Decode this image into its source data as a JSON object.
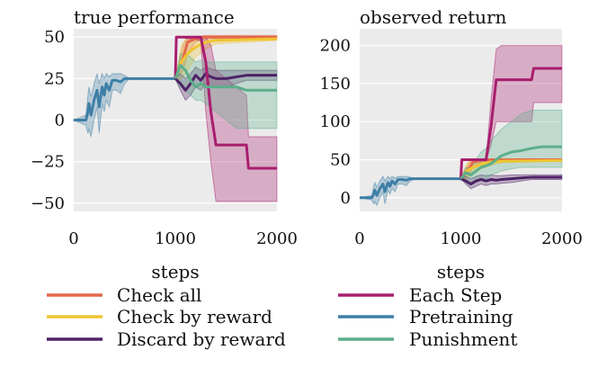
{
  "chart_data": [
    {
      "type": "line",
      "title": "true performance",
      "xlabel": "steps",
      "ylabel": "",
      "xlim": [
        0,
        2000
      ],
      "ylim": [
        -55,
        55
      ],
      "xticks": [
        0,
        1000,
        2000
      ],
      "yticks": [
        -50,
        -25,
        0,
        25,
        50
      ],
      "xtick_labels": [
        "0",
        "1000",
        "2000"
      ],
      "ytick_labels": [
        "−50",
        "−25",
        "0",
        "25",
        "50"
      ],
      "grid": true,
      "series": [
        {
          "name": "Pretraining",
          "color": "#3e7fa6",
          "x": [
            0,
            120,
            140,
            150,
            170,
            200,
            230,
            250,
            280,
            300,
            320,
            350,
            380,
            420,
            460,
            500,
            550,
            1000
          ],
          "y": [
            0,
            0,
            5,
            10,
            3,
            12,
            18,
            8,
            20,
            15,
            22,
            18,
            24,
            24,
            23,
            25,
            25,
            25
          ],
          "band_lower": [
            0,
            -3,
            -8,
            -5,
            -10,
            0,
            8,
            -8,
            10,
            5,
            12,
            8,
            18,
            18,
            16,
            22,
            25,
            25
          ],
          "band_upper": [
            0,
            3,
            15,
            20,
            14,
            22,
            28,
            22,
            28,
            25,
            28,
            26,
            28,
            28,
            28,
            27,
            25,
            25
          ]
        },
        {
          "name": "Check all",
          "color": "#e3694a",
          "x": [
            1000,
            1080,
            1120,
            1200,
            1280,
            2000
          ],
          "y": [
            25,
            38,
            47,
            49,
            50,
            50
          ],
          "band_lower": [
            25,
            30,
            40,
            47,
            49,
            49
          ],
          "band_upper": [
            25,
            46,
            50,
            50,
            51,
            51
          ]
        },
        {
          "name": "Check by reward",
          "color": "#efc531",
          "x": [
            1000,
            1060,
            1120,
            1200,
            1300,
            1400,
            2000
          ],
          "y": [
            25,
            35,
            40,
            44,
            47,
            48,
            49
          ],
          "band_lower": [
            25,
            25,
            30,
            38,
            43,
            46,
            48
          ],
          "band_upper": [
            25,
            45,
            50,
            50,
            50,
            50,
            50
          ]
        },
        {
          "name": "Discard by reward",
          "color": "#4e2266",
          "x": [
            1000,
            1050,
            1100,
            1150,
            1200,
            1250,
            1300,
            1350,
            1400,
            1500,
            1600,
            1700,
            1800,
            2000
          ],
          "y": [
            25,
            22,
            18,
            22,
            27,
            24,
            28,
            26,
            25,
            25,
            26,
            27,
            27,
            27
          ],
          "band_lower": [
            25,
            18,
            12,
            15,
            20,
            18,
            22,
            20,
            20,
            20,
            22,
            24,
            24,
            24
          ],
          "band_upper": [
            25,
            28,
            25,
            28,
            32,
            30,
            32,
            31,
            30,
            30,
            30,
            30,
            30,
            30
          ]
        },
        {
          "name": "Each Step",
          "color": "#a81e6e",
          "x": [
            1000,
            1010,
            1250,
            1300,
            1350,
            1400,
            1700,
            1720,
            2000
          ],
          "y": [
            25,
            50,
            50,
            35,
            5,
            -15,
            -15,
            -29,
            -29
          ],
          "band_lower": [
            25,
            50,
            48,
            5,
            -25,
            -49,
            -49,
            -49,
            -49
          ],
          "band_upper": [
            25,
            50,
            50,
            50,
            45,
            30,
            15,
            -10,
            -10
          ]
        },
        {
          "name": "Punishment",
          "color": "#5cae8a",
          "x": [
            1000,
            1050,
            1100,
            1150,
            1200,
            1250,
            1300,
            1400,
            1500,
            1600,
            1700,
            1800,
            2000
          ],
          "y": [
            25,
            33,
            30,
            24,
            20,
            22,
            20,
            20,
            20,
            20,
            18,
            18,
            18
          ],
          "band_lower": [
            25,
            20,
            18,
            15,
            12,
            12,
            10,
            5,
            0,
            -5,
            -5,
            -5,
            -5
          ],
          "band_upper": [
            25,
            40,
            40,
            38,
            35,
            36,
            35,
            35,
            35,
            35,
            35,
            35,
            35
          ]
        }
      ]
    },
    {
      "type": "line",
      "title": "observed return",
      "xlabel": "steps",
      "ylabel": "",
      "xlim": [
        0,
        2000
      ],
      "ylim": [
        -18,
        222
      ],
      "xticks": [
        0,
        1000,
        2000
      ],
      "yticks": [
        0,
        50,
        100,
        150,
        200
      ],
      "xtick_labels": [
        "0",
        "1000",
        "2000"
      ],
      "ytick_labels": [
        "0",
        "50",
        "100",
        "150",
        "200"
      ],
      "grid": true,
      "series": [
        {
          "name": "Pretraining",
          "color": "#3e7fa6",
          "x": [
            0,
            120,
            140,
            150,
            170,
            200,
            230,
            250,
            280,
            300,
            320,
            350,
            380,
            420,
            460,
            500,
            550,
            1000
          ],
          "y": [
            0,
            0,
            5,
            10,
            3,
            12,
            18,
            8,
            20,
            15,
            22,
            18,
            24,
            24,
            23,
            25,
            25,
            25
          ],
          "band_lower": [
            0,
            -3,
            -8,
            -5,
            -10,
            0,
            8,
            -8,
            10,
            5,
            12,
            8,
            18,
            18,
            16,
            22,
            25,
            25
          ],
          "band_upper": [
            0,
            3,
            15,
            20,
            14,
            22,
            28,
            22,
            28,
            25,
            28,
            26,
            28,
            28,
            28,
            27,
            25,
            25
          ]
        },
        {
          "name": "Check all",
          "color": "#e3694a",
          "x": [
            1000,
            1080,
            1120,
            1200,
            1280,
            2000
          ],
          "y": [
            25,
            38,
            47,
            49,
            50,
            50
          ],
          "band_lower": [
            25,
            30,
            40,
            47,
            49,
            49
          ],
          "band_upper": [
            25,
            46,
            50,
            50,
            51,
            51
          ]
        },
        {
          "name": "Check by reward",
          "color": "#efc531",
          "x": [
            1000,
            1060,
            1120,
            1200,
            1300,
            1400,
            2000
          ],
          "y": [
            25,
            35,
            40,
            44,
            47,
            48,
            49
          ],
          "band_lower": [
            25,
            25,
            30,
            38,
            43,
            46,
            48
          ],
          "band_upper": [
            25,
            45,
            50,
            50,
            50,
            50,
            50
          ]
        },
        {
          "name": "Discard by reward",
          "color": "#4e2266",
          "x": [
            1000,
            1050,
            1100,
            1150,
            1200,
            1250,
            1300,
            1350,
            1400,
            1500,
            1600,
            1700,
            1800,
            2000
          ],
          "y": [
            25,
            22,
            18,
            22,
            24,
            22,
            24,
            23,
            24,
            25,
            26,
            27,
            27,
            27
          ],
          "band_lower": [
            25,
            18,
            12,
            15,
            18,
            16,
            18,
            18,
            19,
            20,
            22,
            24,
            24,
            24
          ],
          "band_upper": [
            25,
            28,
            25,
            28,
            30,
            29,
            30,
            29,
            29,
            30,
            30,
            30,
            30,
            30
          ]
        },
        {
          "name": "Each Step",
          "color": "#a81e6e",
          "x": [
            1000,
            1010,
            1250,
            1300,
            1350,
            1400,
            1700,
            1720,
            2000
          ],
          "y": [
            25,
            50,
            50,
            95,
            155,
            155,
            155,
            170,
            170
          ],
          "band_lower": [
            25,
            50,
            48,
            70,
            100,
            100,
            100,
            125,
            125
          ],
          "band_upper": [
            25,
            50,
            50,
            130,
            195,
            200,
            200,
            200,
            200
          ]
        },
        {
          "name": "Punishment",
          "color": "#5cae8a",
          "x": [
            1000,
            1050,
            1100,
            1150,
            1200,
            1250,
            1300,
            1400,
            1500,
            1600,
            1700,
            1800,
            2000
          ],
          "y": [
            25,
            33,
            30,
            35,
            40,
            42,
            45,
            55,
            60,
            62,
            65,
            67,
            67
          ],
          "band_lower": [
            25,
            20,
            18,
            22,
            25,
            25,
            30,
            35,
            38,
            40,
            40,
            40,
            40
          ],
          "band_upper": [
            25,
            40,
            40,
            50,
            60,
            65,
            75,
            90,
            100,
            110,
            115,
            115,
            115
          ]
        }
      ]
    }
  ],
  "legend": {
    "placement": "bottom",
    "entries": [
      {
        "label": "Check all",
        "color": "#e3694a"
      },
      {
        "label": "Check by reward",
        "color": "#efc531"
      },
      {
        "label": "Discard by reward",
        "color": "#4e2266"
      },
      {
        "label": "Each Step",
        "color": "#a81e6e"
      },
      {
        "label": "Pretraining",
        "color": "#3e7fa6"
      },
      {
        "label": "Punishment",
        "color": "#5cae8a"
      }
    ]
  }
}
